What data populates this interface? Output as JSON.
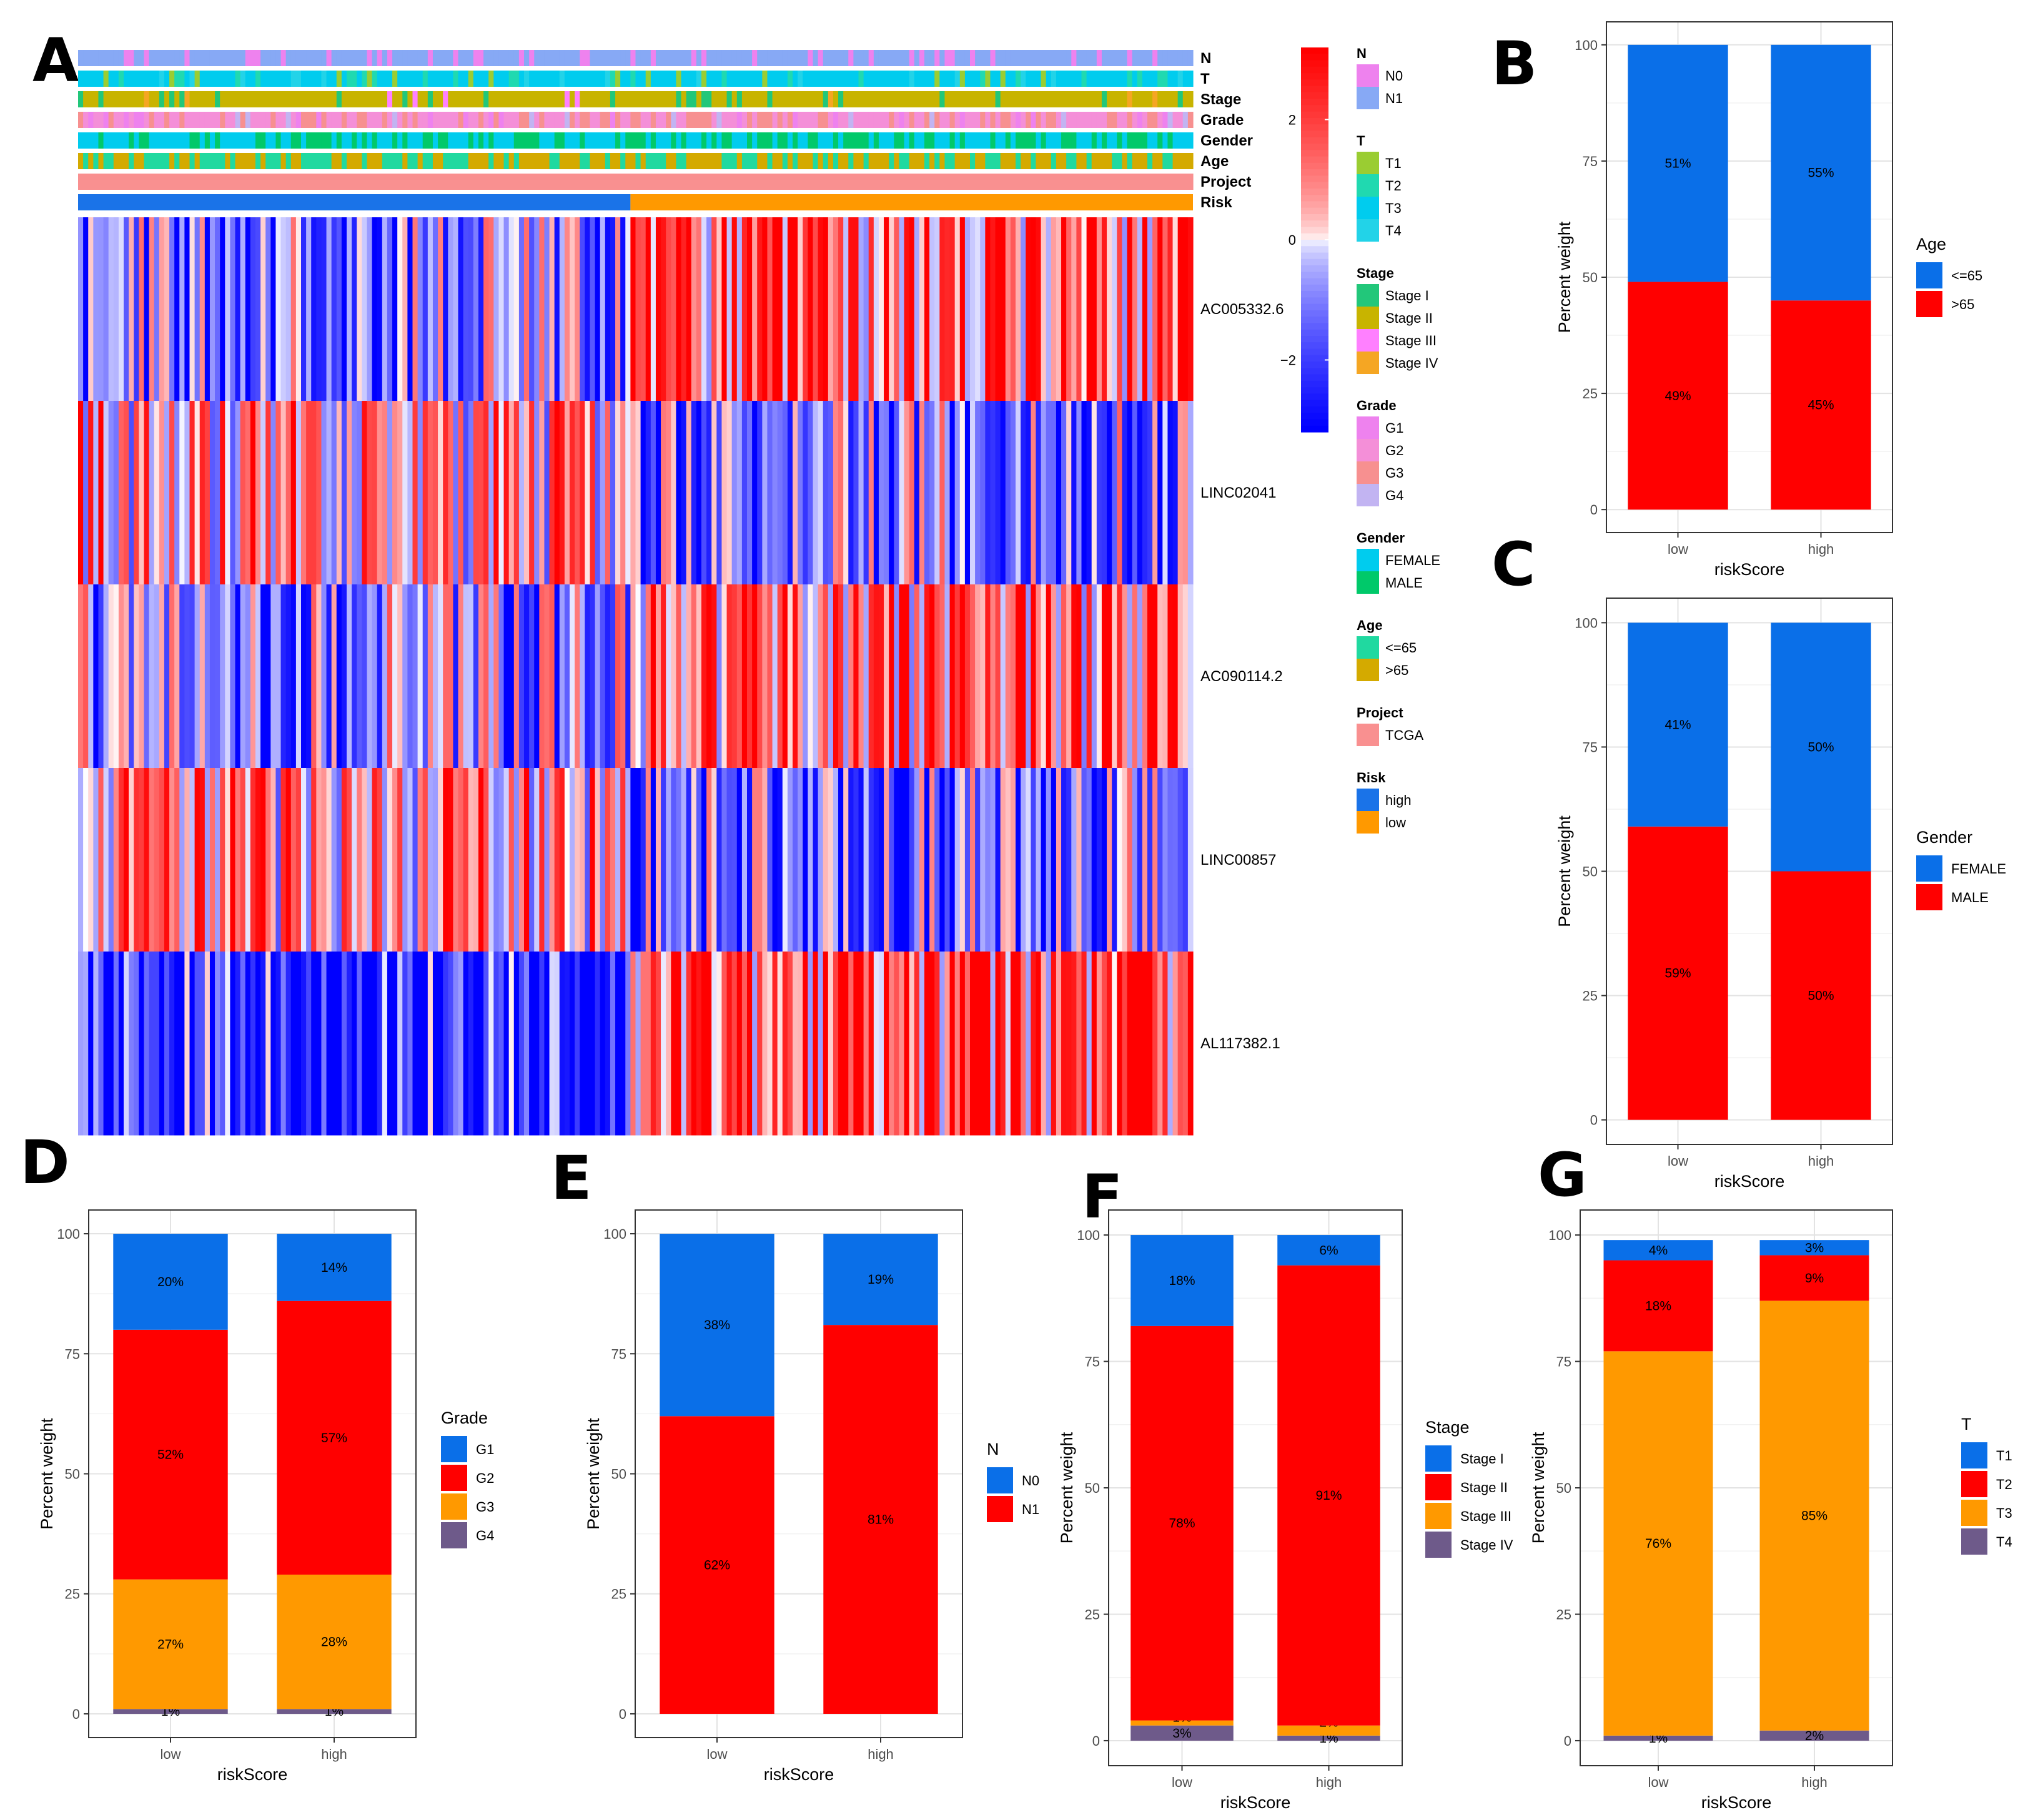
{
  "panels": [
    "A",
    "B",
    "C",
    "D",
    "E",
    "F",
    "G"
  ],
  "colors": {
    "blue": "#0A6FE8",
    "red": "#FF0000",
    "orange": "#FF9900",
    "purple": "#6E5A8A",
    "hm_low": "#0000FF",
    "hm_mid": "#FFFFFF",
    "hm_high": "#FF0000"
  },
  "chart_data": [
    {
      "panel": "A",
      "type": "heatmap",
      "genes": [
        "AC005332.6",
        "LINC02041",
        "AC090114.2",
        "LINC00857",
        "AL117382.1"
      ],
      "annotation_rows": [
        "N",
        "T",
        "Stage",
        "Grade",
        "Gender",
        "Age",
        "Project",
        "Risk"
      ],
      "n_samples": 220,
      "risk_split": 0.495,
      "colorbar": {
        "ticks": [
          "2",
          "0",
          "−2"
        ],
        "values": [
          2,
          0,
          -2
        ],
        "range": [
          -3.2,
          3.2
        ]
      },
      "legend": [
        {
          "title": "N",
          "items": [
            {
              "label": "N0",
              "color": "#EE82EE"
            },
            {
              "label": "N1",
              "color": "#87A9F5"
            }
          ]
        },
        {
          "title": "T",
          "items": [
            {
              "label": "T1",
              "color": "#9ACD32"
            },
            {
              "label": "T2",
              "color": "#20D9B0"
            },
            {
              "label": "T3",
              "color": "#00CCEE"
            },
            {
              "label": "T4",
              "color": "#22D3E8"
            }
          ]
        },
        {
          "title": "Stage",
          "items": [
            {
              "label": "Stage I",
              "color": "#22C77A"
            },
            {
              "label": "Stage II",
              "color": "#C8B400"
            },
            {
              "label": "Stage III",
              "color": "#FF80FF"
            },
            {
              "label": "Stage IV",
              "color": "#F5A623"
            }
          ]
        },
        {
          "title": "Grade",
          "items": [
            {
              "label": "G1",
              "color": "#EE82EE"
            },
            {
              "label": "G2",
              "color": "#F48FD8"
            },
            {
              "label": "G3",
              "color": "#F79090"
            },
            {
              "label": "G4",
              "color": "#C2B4F2"
            }
          ]
        },
        {
          "title": "Gender",
          "items": [
            {
              "label": "FEMALE",
              "color": "#00CCEE"
            },
            {
              "label": "MALE",
              "color": "#00C96A"
            }
          ]
        },
        {
          "title": "Age",
          "items": [
            {
              "label": "<=65",
              "color": "#20D9A0"
            },
            {
              "label": ">65",
              "color": "#D4AA00"
            }
          ]
        },
        {
          "title": "Project",
          "items": [
            {
              "label": "TCGA",
              "color": "#F99090"
            }
          ]
        },
        {
          "title": "Risk",
          "items": [
            {
              "label": "high",
              "color": "#1A73E8"
            },
            {
              "label": "low",
              "color": "#FF9900"
            }
          ]
        }
      ]
    },
    {
      "panel": "B",
      "type": "bar",
      "stacked": true,
      "categories": [
        "low",
        "high"
      ],
      "series": [
        {
          "name": "<=65",
          "color": "#0A6FE8",
          "values": [
            51,
            55
          ]
        },
        {
          "name": ">65",
          "color": "#FF0000",
          "values": [
            49,
            45
          ]
        }
      ],
      "labels": [
        [
          "51%",
          "49%"
        ],
        [
          "55%",
          "45%"
        ]
      ],
      "xlabel": "riskScore",
      "ylabel": "Percent weight",
      "legend_title": "Age",
      "ylim": [
        0,
        100
      ],
      "yticks": [
        0,
        25,
        50,
        75,
        100
      ]
    },
    {
      "panel": "C",
      "type": "bar",
      "stacked": true,
      "categories": [
        "low",
        "high"
      ],
      "series": [
        {
          "name": "FEMALE",
          "color": "#0A6FE8",
          "values": [
            41,
            50
          ]
        },
        {
          "name": "MALE",
          "color": "#FF0000",
          "values": [
            59,
            50
          ]
        }
      ],
      "labels": [
        [
          "41%",
          "59%"
        ],
        [
          "50%",
          "50%"
        ]
      ],
      "xlabel": "riskScore",
      "ylabel": "Percent weight",
      "legend_title": "Gender",
      "ylim": [
        0,
        100
      ],
      "yticks": [
        0,
        25,
        50,
        75,
        100
      ]
    },
    {
      "panel": "D",
      "type": "bar",
      "stacked": true,
      "categories": [
        "low",
        "high"
      ],
      "series": [
        {
          "name": "G1",
          "color": "#0A6FE8",
          "values": [
            20,
            14
          ]
        },
        {
          "name": "G2",
          "color": "#FF0000",
          "values": [
            52,
            57
          ]
        },
        {
          "name": "G3",
          "color": "#FF9900",
          "values": [
            27,
            28
          ]
        },
        {
          "name": "G4",
          "color": "#6E5A8A",
          "values": [
            1,
            1
          ]
        }
      ],
      "labels": [
        [
          "20%",
          "52%",
          "27%",
          "1%"
        ],
        [
          "14%",
          "57%",
          "28%",
          "1%"
        ]
      ],
      "xlabel": "riskScore",
      "ylabel": "Percent weight",
      "legend_title": "Grade",
      "ylim": [
        0,
        100
      ],
      "yticks": [
        0,
        25,
        50,
        75,
        100
      ]
    },
    {
      "panel": "E",
      "type": "bar",
      "stacked": true,
      "categories": [
        "low",
        "high"
      ],
      "series": [
        {
          "name": "N0",
          "color": "#0A6FE8",
          "values": [
            38,
            19
          ]
        },
        {
          "name": "N1",
          "color": "#FF0000",
          "values": [
            62,
            81
          ]
        }
      ],
      "labels": [
        [
          "38%",
          "62%"
        ],
        [
          "19%",
          "81%"
        ]
      ],
      "xlabel": "riskScore",
      "ylabel": "Percent weight",
      "legend_title": "N",
      "ylim": [
        0,
        100
      ],
      "yticks": [
        0,
        25,
        50,
        75,
        100
      ]
    },
    {
      "panel": "F",
      "type": "bar",
      "stacked": true,
      "categories": [
        "low",
        "high"
      ],
      "series": [
        {
          "name": "Stage I",
          "color": "#0A6FE8",
          "values": [
            18,
            6
          ]
        },
        {
          "name": "Stage II",
          "color": "#FF0000",
          "values": [
            78,
            91
          ]
        },
        {
          "name": "Stage III",
          "color": "#FF9900",
          "values": [
            1,
            2
          ]
        },
        {
          "name": "Stage IV",
          "color": "#6E5A8A",
          "values": [
            3,
            1
          ]
        }
      ],
      "labels": [
        [
          "18%",
          "78%",
          "1%",
          "3%"
        ],
        [
          "6%",
          "91%",
          "2%",
          "1%"
        ]
      ],
      "xlabel": "riskScore",
      "ylabel": "Percent weight",
      "legend_title": "Stage",
      "ylim": [
        0,
        100
      ],
      "yticks": [
        0,
        25,
        50,
        75,
        100
      ]
    },
    {
      "panel": "G",
      "type": "bar",
      "stacked": true,
      "categories": [
        "low",
        "high"
      ],
      "series": [
        {
          "name": "T1",
          "color": "#0A6FE8",
          "values": [
            4,
            3
          ]
        },
        {
          "name": "T2",
          "color": "#FF0000",
          "values": [
            18,
            9
          ]
        },
        {
          "name": "T3",
          "color": "#FF9900",
          "values": [
            76,
            85
          ]
        },
        {
          "name": "T4",
          "color": "#6E5A8A",
          "values": [
            1,
            2
          ]
        }
      ],
      "labels": [
        [
          "4%",
          "18%",
          "76%",
          "1%"
        ],
        [
          "3%",
          "9%",
          "85%",
          "2%"
        ]
      ],
      "xlabel": "riskScore",
      "ylabel": "Percent weight",
      "legend_title": "T",
      "ylim": [
        0,
        100
      ],
      "yticks": [
        0,
        25,
        50,
        75,
        100
      ]
    }
  ]
}
